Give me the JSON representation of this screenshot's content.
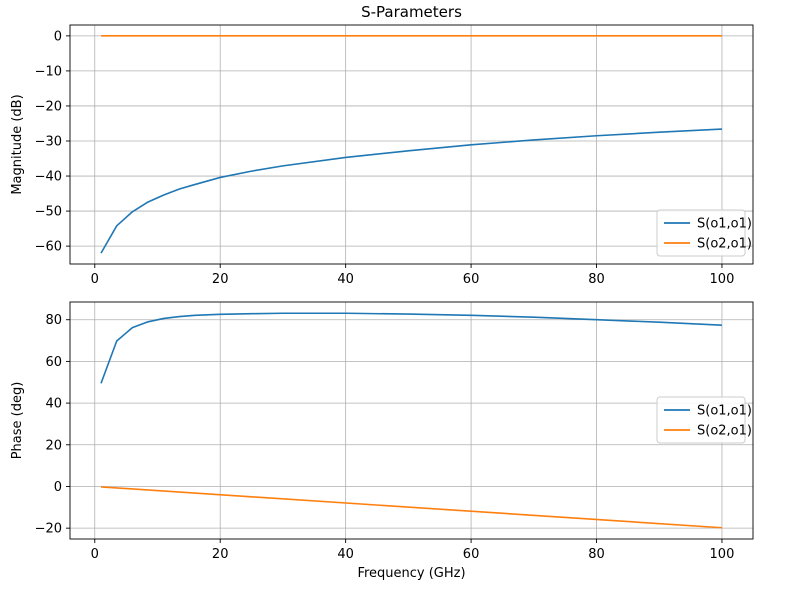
{
  "chart_data": [
    {
      "type": "line",
      "title": "S-Parameters",
      "xlabel": "",
      "ylabel": "Magnitude (dB)",
      "xlim": [
        -3.95,
        104.95
      ],
      "ylim": [
        -65.1,
        3.1
      ],
      "xticks": [
        0,
        20,
        40,
        60,
        80,
        100
      ],
      "yticks": [
        0,
        -10,
        -20,
        -30,
        -40,
        -50,
        -60
      ],
      "ytick_labels": [
        "0",
        "−10",
        "−20",
        "−30",
        "−40",
        "−50",
        "−60"
      ],
      "grid": true,
      "legend_position": "lower-right",
      "series": [
        {
          "name": "S(o1,o1)",
          "color": "#1f77b4",
          "x": [
            1,
            3.5,
            6,
            8.5,
            11,
            13.5,
            16,
            20,
            25,
            30,
            40,
            50,
            60,
            70,
            80,
            90,
            100
          ],
          "y": [
            -62,
            -54.2,
            -50.2,
            -47.4,
            -45.4,
            -43.7,
            -42.4,
            -40.4,
            -38.6,
            -37.1,
            -34.7,
            -32.8,
            -31.1,
            -29.7,
            -28.5,
            -27.5,
            -26.6
          ]
        },
        {
          "name": "S(o2,o1)",
          "color": "#ff7f0e",
          "x": [
            1,
            100
          ],
          "y": [
            0,
            0
          ]
        }
      ]
    },
    {
      "type": "line",
      "title": "",
      "xlabel": "Frequency (GHz)",
      "ylabel": "Phase (deg)",
      "xlim": [
        -3.95,
        104.95
      ],
      "ylim": [
        -25.2,
        88.5
      ],
      "xticks": [
        0,
        20,
        40,
        60,
        80,
        100
      ],
      "yticks": [
        80,
        60,
        40,
        20,
        0,
        -20
      ],
      "ytick_labels": [
        "80",
        "60",
        "40",
        "20",
        "0",
        "−20"
      ],
      "grid": true,
      "legend_position": "center-right",
      "series": [
        {
          "name": "S(o1,o1)",
          "color": "#1f77b4",
          "x": [
            1,
            3.5,
            6,
            8.5,
            11,
            13.5,
            16,
            20,
            25,
            30,
            40,
            50,
            60,
            70,
            80,
            90,
            100
          ],
          "y": [
            49.5,
            69.8,
            76.2,
            79.0,
            80.6,
            81.5,
            82.1,
            82.6,
            82.9,
            83.1,
            83.1,
            82.7,
            82.1,
            81.2,
            80.0,
            78.8,
            77.4
          ]
        },
        {
          "name": "S(o2,o1)",
          "color": "#ff7f0e",
          "x": [
            1,
            100
          ],
          "y": [
            -0.2,
            -19.8
          ]
        }
      ]
    }
  ]
}
